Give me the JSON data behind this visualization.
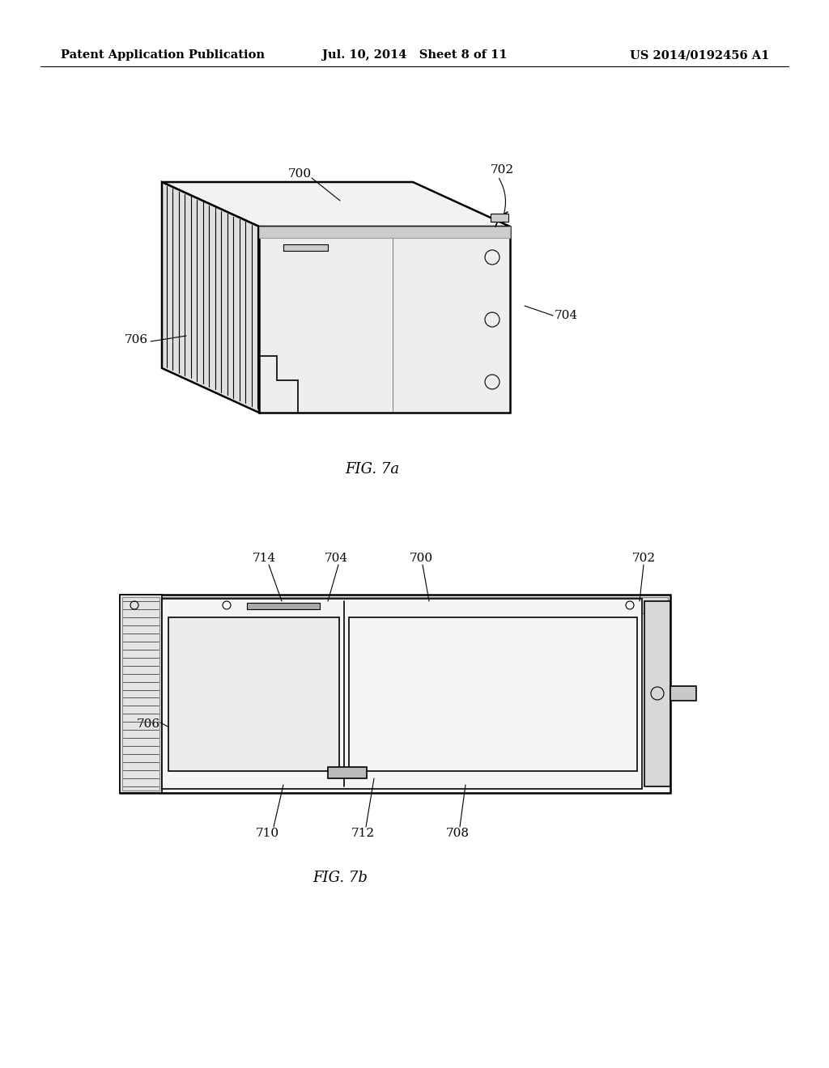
{
  "background_color": "#ffffff",
  "header_left": "Patent Application Publication",
  "header_center": "Jul. 10, 2014   Sheet 8 of 11",
  "header_right": "US 2014/0192456 A1",
  "line_color": "#000000",
  "lw_thick": 1.8,
  "lw_med": 1.2,
  "lw_thin": 0.8,
  "label_fontsize": 11,
  "header_fontsize": 10.5,
  "caption_fontsize": 13
}
